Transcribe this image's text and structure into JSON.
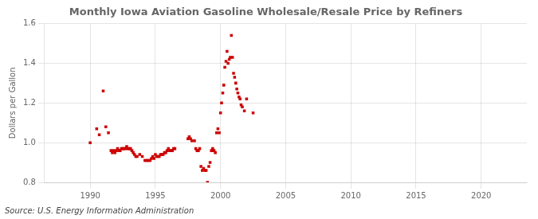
{
  "chart_data": {
    "type": "scatter",
    "title": "Monthly Iowa Aviation Gasoline Wholesale/Resale Price by Refiners",
    "ylabel": "Dollars per Gallon",
    "annotation": "Source: U.S. Energy Information Administration",
    "color": "#cc0000",
    "marker": "square",
    "grid": true,
    "xlim": [
      1986.5,
      2023.5
    ],
    "ylim": [
      0.8,
      1.6
    ],
    "xticks": [
      1990,
      1995,
      2000,
      2005,
      2010,
      2015,
      2020
    ],
    "yticks": [
      0.8,
      {
        "value": 1.0,
        "label": "1.0"
      },
      1.2,
      1.4,
      1.6
    ],
    "x": [
      1990.0,
      1990.5,
      1990.7,
      1991.0,
      1991.2,
      1991.4,
      1991.6,
      1991.7,
      1991.8,
      1991.9,
      1992.0,
      1992.1,
      1992.2,
      1992.3,
      1992.4,
      1992.5,
      1992.6,
      1992.7,
      1992.8,
      1992.9,
      1993.0,
      1993.1,
      1993.2,
      1993.3,
      1993.4,
      1993.5,
      1993.6,
      1993.8,
      1994.0,
      1994.2,
      1994.3,
      1994.4,
      1994.5,
      1994.6,
      1994.7,
      1994.8,
      1994.9,
      1995.0,
      1995.1,
      1995.2,
      1995.3,
      1995.4,
      1995.5,
      1995.6,
      1995.7,
      1995.8,
      1995.9,
      1996.0,
      1996.1,
      1996.2,
      1996.3,
      1996.4,
      1996.5,
      1997.5,
      1997.6,
      1997.7,
      1997.8,
      1998.0,
      1998.1,
      1998.2,
      1998.3,
      1998.4,
      1998.5,
      1998.6,
      1998.7,
      1998.8,
      1998.9,
      1999.0,
      1999.1,
      1999.2,
      1999.3,
      1999.4,
      1999.5,
      1999.6,
      1999.7,
      1999.8,
      1999.9,
      2000.0,
      2000.08,
      2000.17,
      2000.25,
      2000.33,
      2000.42,
      2000.5,
      2000.58,
      2000.67,
      2000.75,
      2000.83,
      2000.92,
      2001.0,
      2001.08,
      2001.17,
      2001.25,
      2001.33,
      2001.42,
      2001.5,
      2001.58,
      2001.67,
      2001.83,
      2002.0,
      2002.5
    ],
    "values": [
      1.0,
      1.07,
      1.04,
      1.26,
      1.08,
      1.05,
      0.96,
      0.95,
      0.96,
      0.95,
      0.96,
      0.97,
      0.96,
      0.96,
      0.97,
      0.97,
      0.97,
      0.97,
      0.98,
      0.97,
      0.97,
      0.97,
      0.96,
      0.95,
      0.94,
      0.93,
      0.93,
      0.94,
      0.93,
      0.91,
      0.91,
      0.91,
      0.91,
      0.91,
      0.92,
      0.93,
      0.92,
      0.94,
      0.93,
      0.93,
      0.93,
      0.94,
      0.94,
      0.94,
      0.95,
      0.95,
      0.96,
      0.97,
      0.96,
      0.96,
      0.96,
      0.97,
      0.97,
      1.02,
      1.03,
      1.02,
      1.01,
      1.01,
      0.97,
      0.96,
      0.96,
      0.97,
      0.88,
      0.86,
      0.87,
      0.86,
      0.86,
      0.8,
      0.88,
      0.9,
      0.96,
      0.97,
      0.96,
      0.95,
      1.05,
      1.07,
      1.05,
      1.15,
      1.2,
      1.25,
      1.29,
      1.38,
      1.41,
      1.46,
      1.4,
      1.42,
      1.43,
      1.54,
      1.43,
      1.35,
      1.33,
      1.3,
      1.27,
      1.25,
      1.23,
      1.22,
      1.19,
      1.18,
      1.16,
      1.22,
      1.15
    ]
  }
}
